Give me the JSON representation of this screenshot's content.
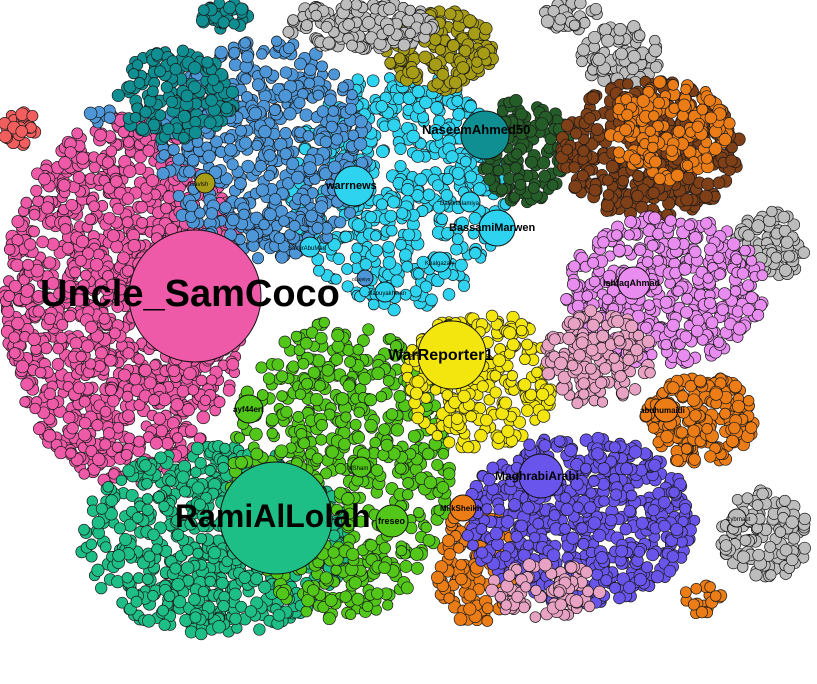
{
  "graph": {
    "communities": [
      {
        "name": "pink",
        "color": "#ee5aa8"
      },
      {
        "name": "teal-green",
        "color": "#1dbf86"
      },
      {
        "name": "lime-green",
        "color": "#52c71a"
      },
      {
        "name": "cyan",
        "color": "#2ed3ef"
      },
      {
        "name": "steel-blue",
        "color": "#4d97d9"
      },
      {
        "name": "dark-teal",
        "color": "#108f93"
      },
      {
        "name": "olive",
        "color": "#a79c16"
      },
      {
        "name": "gray",
        "color": "#bdbdbd"
      },
      {
        "name": "dark-green",
        "color": "#245d27"
      },
      {
        "name": "brown",
        "color": "#7f3f17"
      },
      {
        "name": "violet",
        "color": "#e98cf0"
      },
      {
        "name": "orange",
        "color": "#ec7d16"
      },
      {
        "name": "yellow",
        "color": "#f3e60f"
      },
      {
        "name": "purple-blue",
        "color": "#6a55ec"
      },
      {
        "name": "light-pink",
        "color": "#e8a2c4"
      },
      {
        "name": "red",
        "color": "#f25d5d"
      }
    ],
    "hubs": [
      {
        "id": "uncle-samcoco",
        "label": "Uncle_SamCoco",
        "color": "#ee5aa8"
      },
      {
        "id": "ramialloah",
        "label": "RamiAlLolah",
        "color": "#1dbf86"
      },
      {
        "id": "warreporter1",
        "label": "WarReporter1",
        "color": "#f3e60f"
      },
      {
        "id": "naseemahmed",
        "label": "NaseemAhmed50",
        "color": "#108f93"
      },
      {
        "id": "warrnews",
        "label": "warrnews",
        "color": "#2ed3ef"
      },
      {
        "id": "bassamimarwen",
        "label": "BassamiMarwen",
        "color": "#2ed3ef"
      },
      {
        "id": "maghrabiarabi",
        "label": "MaghrabiArabi",
        "color": "#6a55ec"
      },
      {
        "id": "ishfaqahmad",
        "label": "IshfaqAhmad",
        "color": "#e98cf0"
      },
      {
        "id": "abuhumaidi",
        "label": "abuhumaidi",
        "color": "#ec7d16"
      },
      {
        "id": "milksheikh",
        "label": "MilkSheikh",
        "color": "#ec7d16"
      },
      {
        "id": "freseo",
        "label": "freseo",
        "color": "#52c71a"
      },
      {
        "id": "ayf44ert",
        "label": "ayf44ert",
        "color": "#52c71a"
      },
      {
        "id": "alsham",
        "label": "alSham",
        "color": "#52c71a"
      },
      {
        "id": "dauletiislam",
        "label": "Dauletislamiya",
        "color": "#2ed3ef"
      },
      {
        "id": "khalgazaly",
        "label": "Khalgazaly",
        "color": "#2ed3ef"
      },
      {
        "id": "slapuyakhwan",
        "label": "slapuyakhwan",
        "color": "#2ed3ef"
      },
      {
        "id": "ffsavlsh",
        "label": "ffsavlsh",
        "color": "#a79c16"
      },
      {
        "id": "samirabu",
        "label": "SamirAbuMari",
        "color": "#2ed3ef"
      },
      {
        "id": "olajeiys",
        "label": "oLajeiys",
        "color": "#4d97d9"
      },
      {
        "id": "cybrnaut",
        "label": "Cybrnaut",
        "color": "#bdbdbd"
      }
    ]
  }
}
